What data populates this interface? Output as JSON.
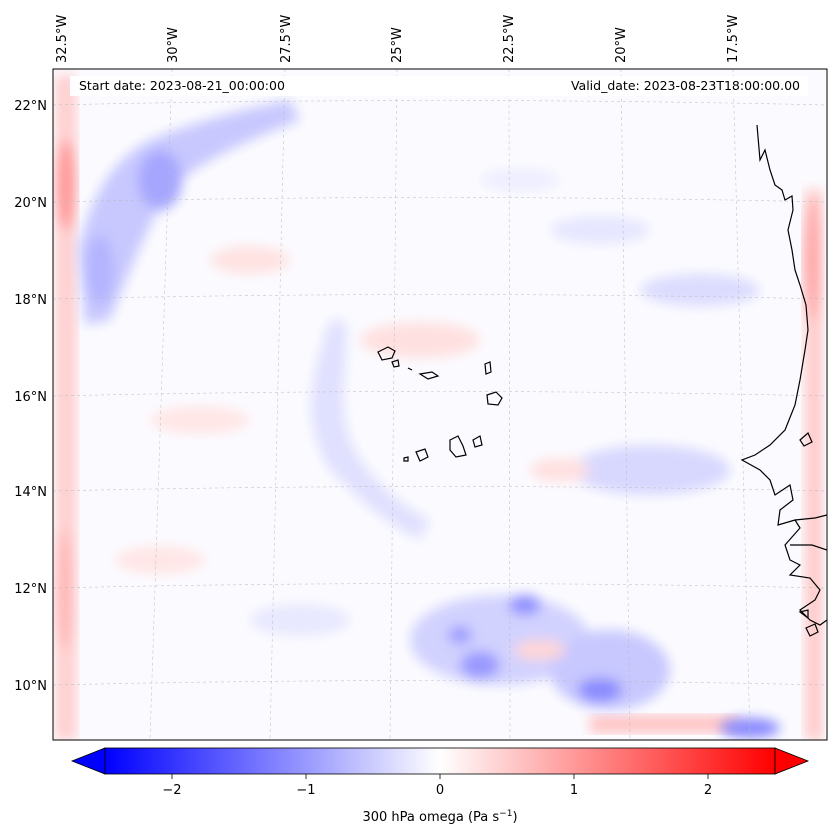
{
  "header": {
    "start_date": "Start date: 2023-08-21_00:00:00",
    "valid_date": "Valid_date: 2023-08-23T18:00:00.00"
  },
  "map": {
    "lon_labels": [
      "32.5°W",
      "30°W",
      "27.5°W",
      "25°W",
      "22.5°W",
      "20°W",
      "17.5°W"
    ],
    "lat_labels": [
      "22°N",
      "20°N",
      "18°N",
      "16°N",
      "14°N",
      "12°N",
      "10°N"
    ],
    "gridlines": "dashed",
    "field_colors": {
      "negative": "#0000ff",
      "zero": "#ffffff",
      "positive": "#ff0000"
    }
  },
  "colorbar": {
    "label_prefix": "300 hPa omega (Pa s",
    "label_exp": "−1",
    "label_suffix": ")",
    "ticks": [
      "−2",
      "−1",
      "0",
      "1",
      "2"
    ],
    "tick_values": [
      -2,
      -1,
      0,
      1,
      2
    ],
    "range": [
      -2.5,
      2.5
    ],
    "extend": "both",
    "colormap": "bwr"
  }
}
